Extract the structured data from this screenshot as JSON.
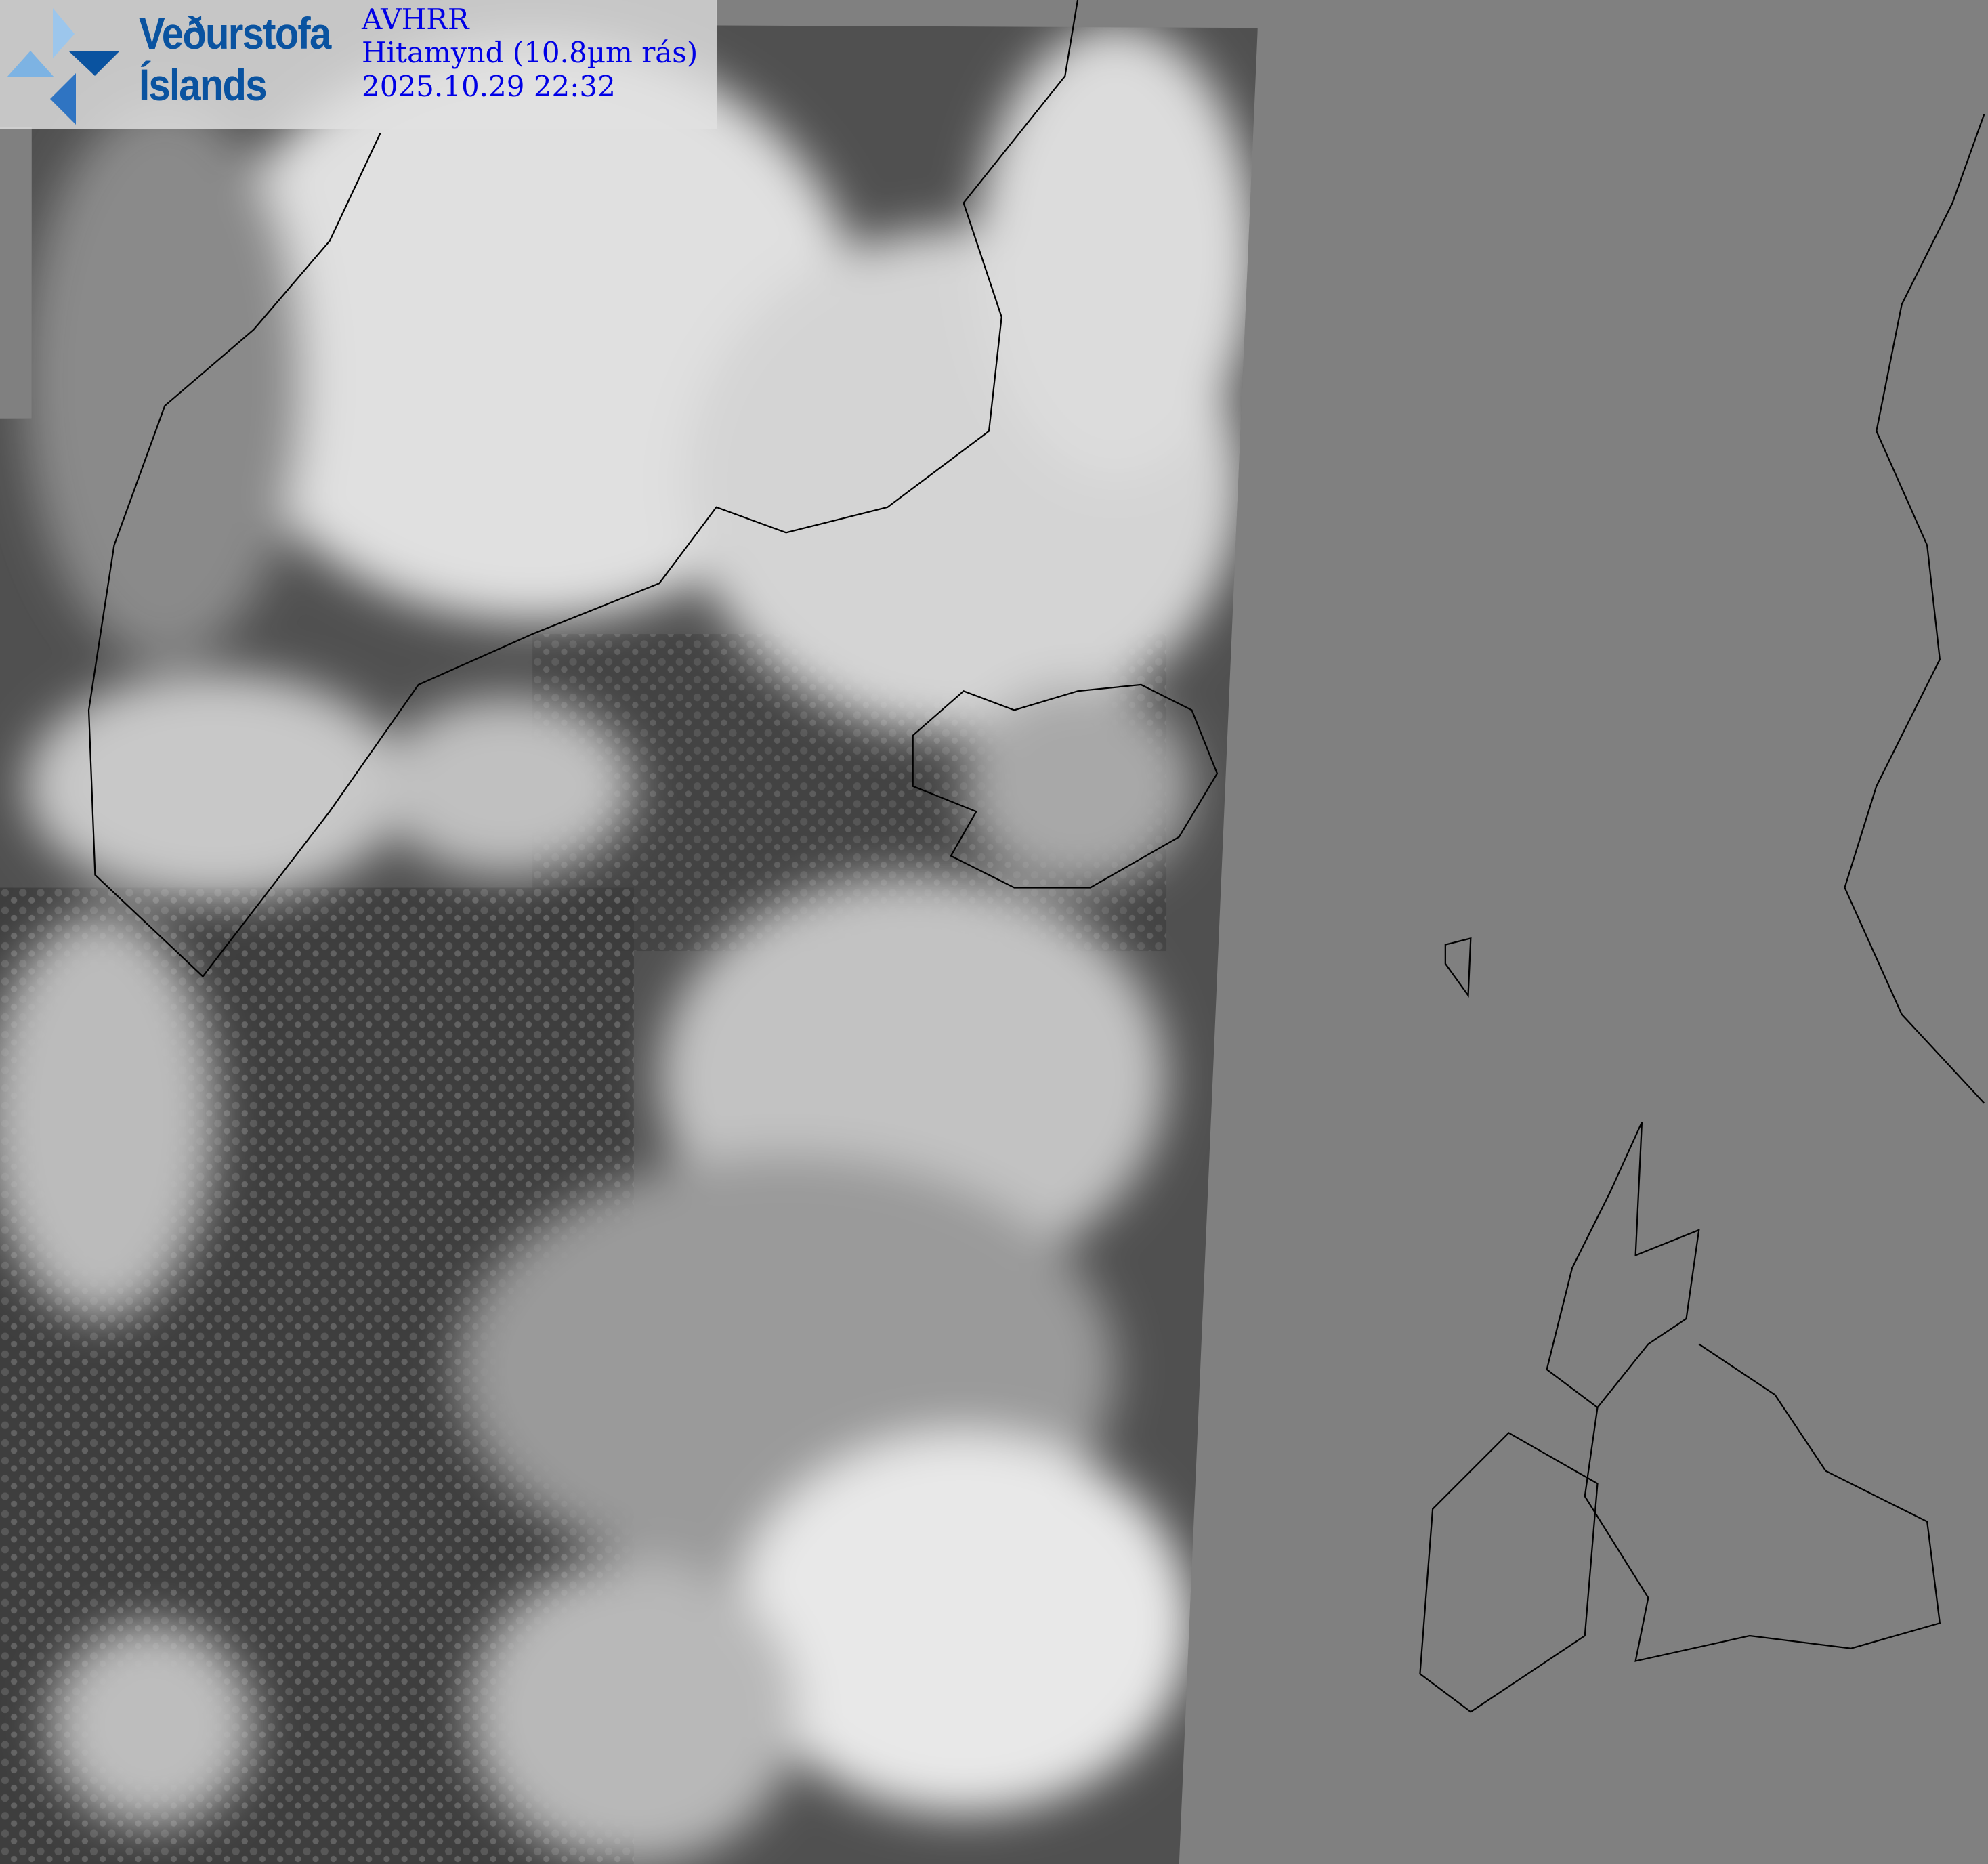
{
  "logo": {
    "line1": "Veðurstofa",
    "line2": "Íslands",
    "brand_color": "#0a53a0"
  },
  "info": {
    "sensor": "AVHRR",
    "product": "Hitamynd (10.8µm rás)",
    "timestamp": "2025.10.29 22:32",
    "text_color": "#0000e6"
  },
  "map": {
    "background_color": "#808080",
    "coastline_color": "#000000"
  }
}
